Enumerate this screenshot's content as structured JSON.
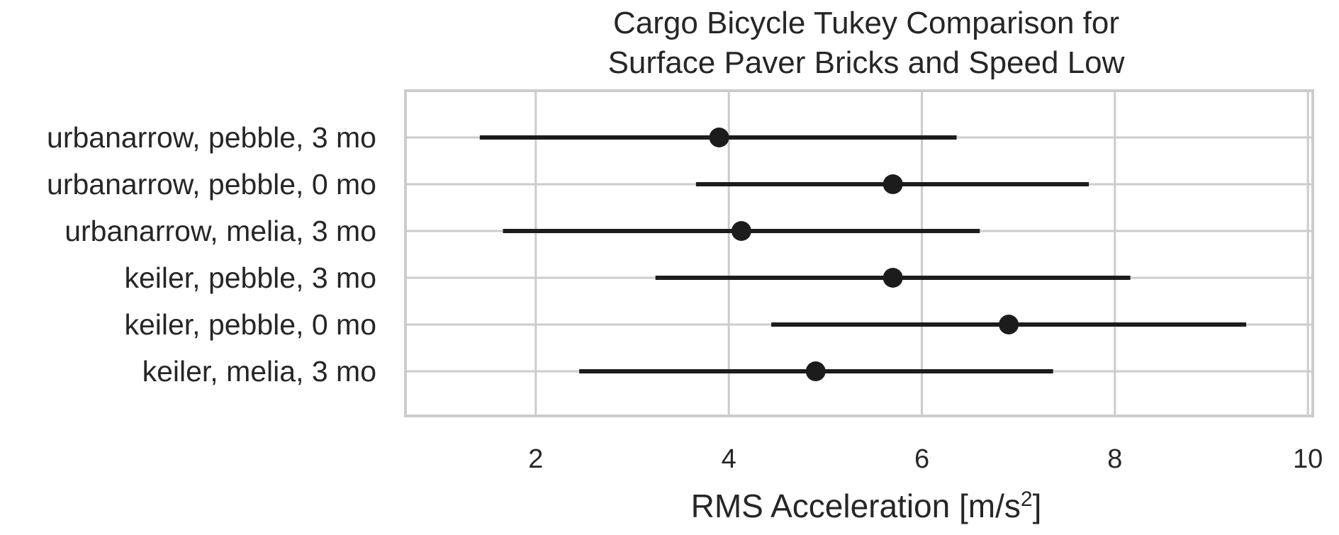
{
  "chart_data": {
    "type": "errorbar",
    "title_lines": [
      "Cargo Bicycle Tukey Comparison for",
      "Surface Paver Bricks and Speed Low"
    ],
    "xlabel_main": "RMS Acceleration [m/s",
    "xlabel_sup": "2",
    "xlabel_end": "]",
    "ylabel": "",
    "xlim": [
      0.65,
      10.05
    ],
    "xticks": [
      2,
      4,
      6,
      8,
      10
    ],
    "grid": true,
    "legend": "none",
    "colors": {
      "marker": "#1c1c1c",
      "grid": "#cccccc",
      "frame": "#cccccc",
      "text": "#262626"
    },
    "groups": [
      {
        "label": "urbanarrow, pebble, 3 mo",
        "center": 3.9,
        "low": 1.42,
        "high": 6.36
      },
      {
        "label": "urbanarrow, pebble, 0 mo",
        "center": 5.7,
        "low": 3.66,
        "high": 7.73
      },
      {
        "label": "urbanarrow, melia, 3 mo",
        "center": 4.13,
        "low": 1.66,
        "high": 6.6
      },
      {
        "label": "keiler, pebble, 3 mo",
        "center": 5.7,
        "low": 3.24,
        "high": 8.16
      },
      {
        "label": "keiler, pebble, 0 mo",
        "center": 6.9,
        "low": 4.44,
        "high": 9.36
      },
      {
        "label": "keiler, melia, 3 mo",
        "center": 4.9,
        "low": 2.45,
        "high": 7.36
      }
    ]
  }
}
